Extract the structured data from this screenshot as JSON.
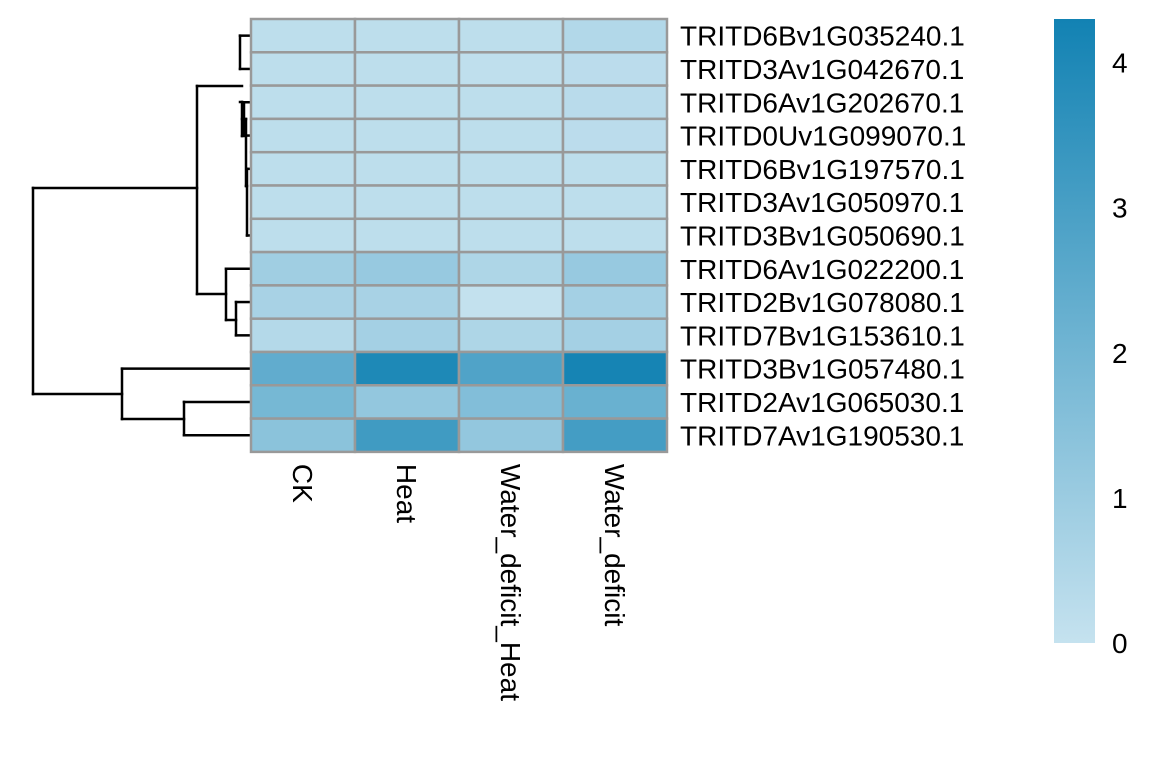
{
  "chart_data": {
    "type": "heatmap",
    "title": "",
    "columns": [
      "CK",
      "Heat",
      "Water_deficit_Heat",
      "Water_deficit"
    ],
    "rows": [
      "TRITD6Bv1G035240.1",
      "TRITD3Av1G042670.1",
      "TRITD6Av1G202670.1",
      "TRITD0Uv1G099070.1",
      "TRITD6Bv1G197570.1",
      "TRITD3Av1G050970.1",
      "TRITD3Bv1G050690.1",
      "TRITD6Av1G022200.1",
      "TRITD2Bv1G078080.1",
      "TRITD7Bv1G153610.1",
      "TRITD3Bv1G057480.1",
      "TRITD2Av1G065030.1",
      "TRITD7Av1G190530.1"
    ],
    "values": [
      [
        0.2,
        0.2,
        0.2,
        0.45
      ],
      [
        0.2,
        0.2,
        0.15,
        0.25
      ],
      [
        0.2,
        0.2,
        0.2,
        0.3
      ],
      [
        0.2,
        0.2,
        0.2,
        0.25
      ],
      [
        0.2,
        0.2,
        0.2,
        0.2
      ],
      [
        0.2,
        0.2,
        0.2,
        0.2
      ],
      [
        0.2,
        0.2,
        0.2,
        0.2
      ],
      [
        0.9,
        1.1,
        0.55,
        1.1
      ],
      [
        0.7,
        0.7,
        0.05,
        0.8
      ],
      [
        0.4,
        0.8,
        0.55,
        0.8
      ],
      [
        2.4,
        4.0,
        2.8,
        4.2
      ],
      [
        1.9,
        1.2,
        1.6,
        2.2
      ],
      [
        1.4,
        3.2,
        1.2,
        3.1
      ]
    ],
    "colorbar": {
      "ticks": [
        0,
        1,
        2,
        3,
        4
      ],
      "range": [
        0,
        4.3
      ],
      "color_low": "#c5e2ef",
      "color_high": "#1282b3"
    },
    "cell_border_color": "#999999",
    "dendrogram_rows": {
      "line_color": "#000000"
    }
  }
}
